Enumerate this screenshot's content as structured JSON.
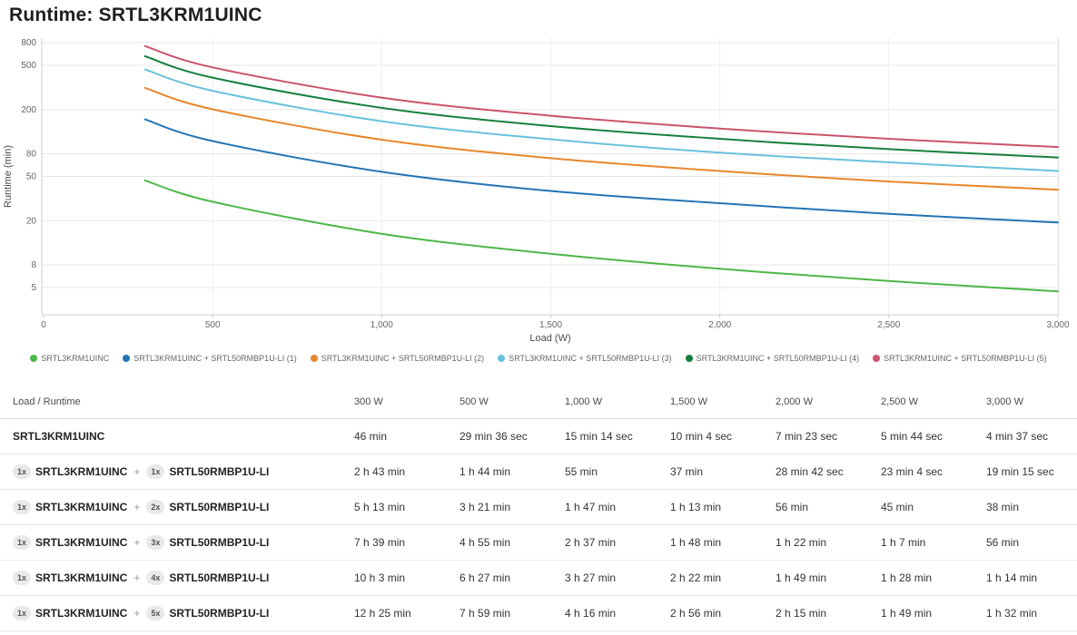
{
  "page": {
    "title": "Runtime: SRTL3KRM1UINC"
  },
  "chart_data": {
    "type": "line",
    "title": "",
    "xlabel": "Load (W)",
    "ylabel": "Runtime (min)",
    "grid": true,
    "legend_position": "bottom",
    "x_axis": {
      "min": 0,
      "max": 3000,
      "tick_values": [
        0,
        500,
        1000,
        1500,
        2000,
        2500,
        3000
      ],
      "tick_labels": [
        "0",
        "500",
        "1,000",
        "1,500",
        "2,000",
        "2,500",
        "3,000"
      ]
    },
    "y_axis": {
      "scale": "log",
      "top_value": 800,
      "tick_values": [
        800,
        500,
        200,
        80,
        50,
        20,
        8,
        5
      ],
      "tick_labels": [
        "800",
        "500",
        "200",
        "80",
        "50",
        "20",
        "8",
        "5"
      ]
    },
    "x": [
      300,
      500,
      1000,
      1500,
      2000,
      2500,
      3000
    ],
    "series": [
      {
        "name": "SRTL3KRM1UINC",
        "color": "#4cb848",
        "values": [
          46,
          29.6,
          15.23,
          10.07,
          7.38,
          5.73,
          4.62
        ]
      },
      {
        "name": "SRTL3KRM1UINC + SRTL50RMBP1U-LI (1)",
        "color": "#2274b5",
        "values": [
          163,
          104,
          55,
          37,
          28.7,
          23.07,
          19.25
        ]
      },
      {
        "name": "SRTL3KRM1UINC + SRTL50RMBP1U-LI (2)",
        "color": "#e8872b",
        "values": [
          313,
          201,
          107,
          73,
          56,
          45,
          38
        ]
      },
      {
        "name": "SRTL3KRM1UINC + SRTL50RMBP1U-LI (3)",
        "color": "#67c1dc",
        "values": [
          459,
          295,
          157,
          108,
          82,
          67,
          56
        ]
      },
      {
        "name": "SRTL3KRM1UINC + SRTL50RMBP1U-LI (4)",
        "color": "#15803c",
        "values": [
          603,
          387,
          207,
          142,
          109,
          88,
          74
        ]
      },
      {
        "name": "SRTL3KRM1UINC + SRTL50RMBP1U-LI (5)",
        "color": "#c9546c",
        "values": [
          745,
          479,
          256,
          176,
          135,
          109,
          92
        ]
      }
    ]
  },
  "table": {
    "header": [
      "Load / Runtime",
      "300 W",
      "500 W",
      "1,000 W",
      "1,500 W",
      "2,000 W",
      "2,500 W",
      "3,000 W"
    ],
    "rows": [
      {
        "label": [
          {
            "name": "SRTL3KRM1UINC"
          }
        ],
        "cells": [
          "46 min",
          "29 min 36 sec",
          "15 min 14 sec",
          "10 min 4 sec",
          "7 min 23 sec",
          "5 min 44 sec",
          "4 min 37 sec"
        ]
      },
      {
        "label": [
          {
            "qty": "1x",
            "name": "SRTL3KRM1UINC"
          },
          {
            "qty": "1x",
            "name": "SRTL50RMBP1U-LI"
          }
        ],
        "cells": [
          "2 h 43 min",
          "1 h 44 min",
          "55 min",
          "37 min",
          "28 min 42 sec",
          "23 min 4 sec",
          "19 min 15 sec"
        ]
      },
      {
        "label": [
          {
            "qty": "1x",
            "name": "SRTL3KRM1UINC"
          },
          {
            "qty": "2x",
            "name": "SRTL50RMBP1U-LI"
          }
        ],
        "cells": [
          "5 h 13 min",
          "3 h 21 min",
          "1 h 47 min",
          "1 h 13 min",
          "56 min",
          "45 min",
          "38 min"
        ]
      },
      {
        "label": [
          {
            "qty": "1x",
            "name": "SRTL3KRM1UINC"
          },
          {
            "qty": "3x",
            "name": "SRTL50RMBP1U-LI"
          }
        ],
        "cells": [
          "7 h 39 min",
          "4 h 55 min",
          "2 h 37 min",
          "1 h 48 min",
          "1 h 22 min",
          "1 h 7 min",
          "56 min"
        ]
      },
      {
        "label": [
          {
            "qty": "1x",
            "name": "SRTL3KRM1UINC"
          },
          {
            "qty": "4x",
            "name": "SRTL50RMBP1U-LI"
          }
        ],
        "cells": [
          "10 h 3 min",
          "6 h 27 min",
          "3 h 27 min",
          "2 h 22 min",
          "1 h 49 min",
          "1 h 28 min",
          "1 h 14 min"
        ]
      },
      {
        "label": [
          {
            "qty": "1x",
            "name": "SRTL3KRM1UINC"
          },
          {
            "qty": "5x",
            "name": "SRTL50RMBP1U-LI"
          }
        ],
        "cells": [
          "12 h 25 min",
          "7 h 59 min",
          "4 h 16 min",
          "2 h 56 min",
          "2 h 15 min",
          "1 h 49 min",
          "1 h 32 min"
        ]
      }
    ]
  }
}
